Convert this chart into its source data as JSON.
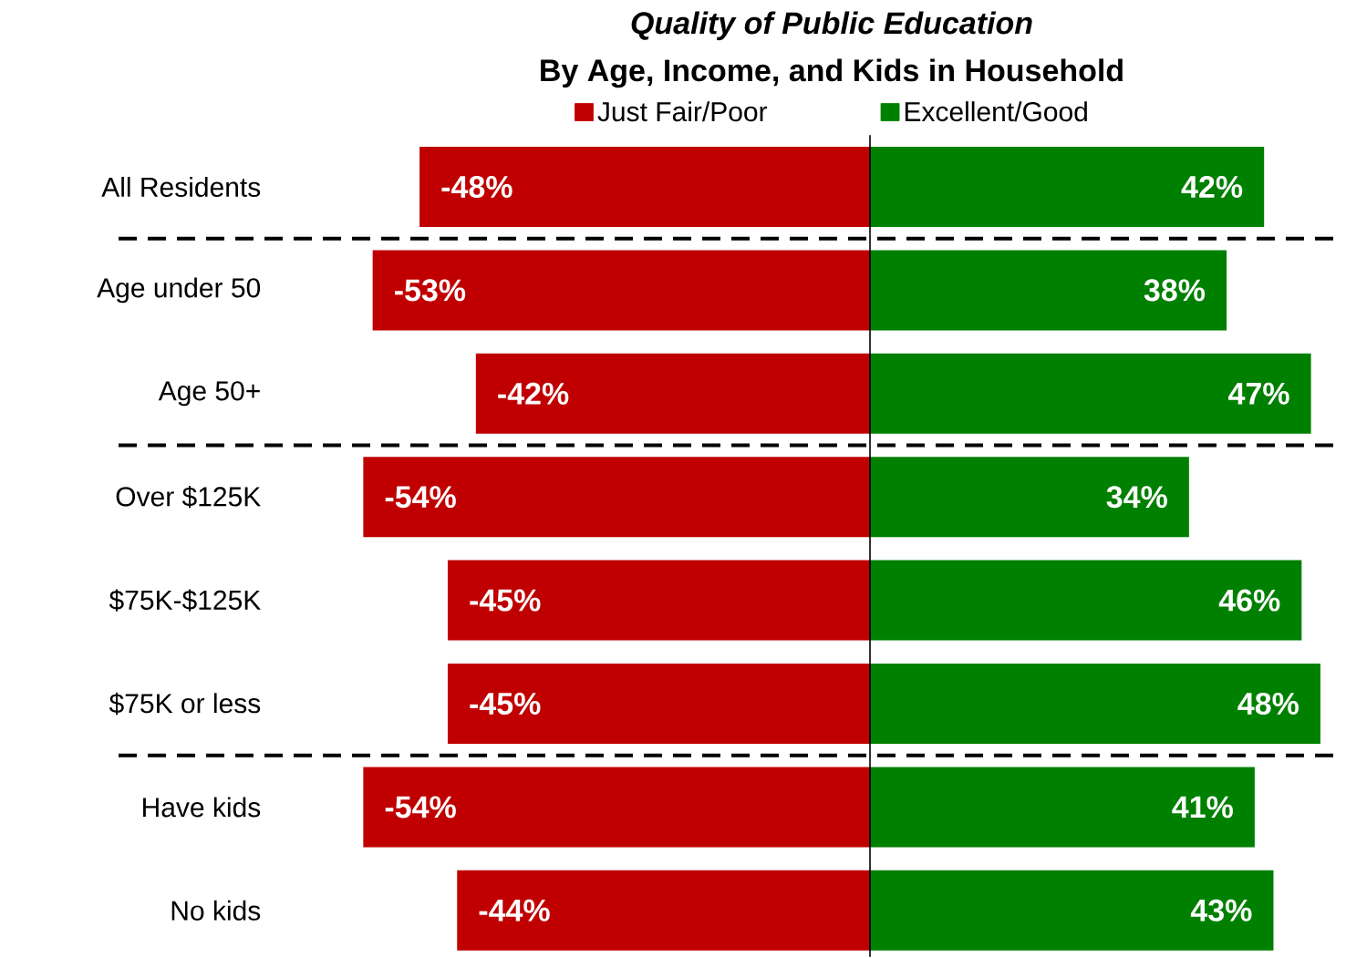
{
  "chart_data": {
    "type": "bar",
    "orientation": "horizontal",
    "stacked": true,
    "title": "*Quality of Public Education*",
    "subtitle": "By Age, Income, and Kids in Household",
    "categories": [
      "All Residents",
      "Age under 50",
      "Age 50+",
      "Over $125K",
      "$75K-$125K",
      "$75K or less",
      "Have kids",
      "No kids"
    ],
    "series": [
      {
        "name": "Just Fair/Poor",
        "color": "#c00000",
        "values": [
          -48,
          -53,
          -42,
          -54,
          -45,
          -45,
          -54,
          -44
        ],
        "value_labels": [
          "-48%",
          "-53%",
          "-42%",
          "-54%",
          "-45%",
          "-45%",
          "-54%",
          "-44%"
        ]
      },
      {
        "name": "Excellent/Good",
        "color": "#008000",
        "values": [
          42,
          38,
          47,
          34,
          46,
          48,
          41,
          43
        ],
        "value_labels": [
          "42%",
          "38%",
          "47%",
          "34%",
          "46%",
          "48%",
          "41%",
          "43%"
        ]
      }
    ],
    "legend": "top",
    "tick_labels": "y"
  }
}
